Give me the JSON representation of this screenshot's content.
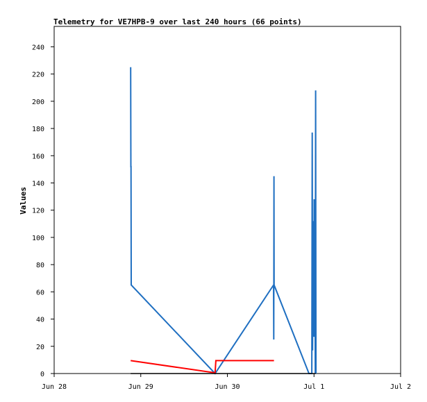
{
  "chart_data": {
    "type": "line",
    "title": "Telemetry for VE7HPB-9 over last 240 hours (66 points)",
    "xlabel": "",
    "ylabel": "Values",
    "x_tick_labels": [
      "Jun 28",
      "Jun 29",
      "Jun 30",
      "Jul 1",
      "Jul 2"
    ],
    "x_ticks": [
      0,
      24,
      48,
      72,
      96
    ],
    "xlim": [
      0,
      96
    ],
    "x_unit_note": "hours after Jun 28 00:00",
    "ylim": [
      0,
      255
    ],
    "y_ticks": [
      0,
      20,
      40,
      60,
      80,
      100,
      120,
      140,
      160,
      180,
      200,
      220,
      240
    ],
    "grid": false,
    "legend": "none",
    "series": [
      {
        "color": "#1f6fc1",
        "points": [
          [
            21.2,
            225
          ],
          [
            21.25,
            152
          ],
          [
            21.3,
            152
          ],
          [
            21.35,
            65
          ],
          [
            44.6,
            0
          ],
          [
            60.8,
            65
          ],
          [
            60.85,
            25
          ],
          [
            60.9,
            145
          ],
          [
            60.95,
            65
          ],
          [
            70.6,
            0
          ],
          [
            71.4,
            0
          ],
          [
            71.5,
            177
          ],
          [
            71.6,
            17
          ],
          [
            71.7,
            82
          ],
          [
            71.8,
            50
          ],
          [
            71.9,
            112
          ],
          [
            72.0,
            27
          ],
          [
            72.05,
            128
          ],
          [
            72.15,
            65
          ],
          [
            72.25,
            98
          ],
          [
            72.35,
            0
          ],
          [
            72.45,
            208
          ],
          [
            72.55,
            0
          ]
        ]
      },
      {
        "color": "#ff0000",
        "points": [
          [
            21.2,
            9.5
          ],
          [
            44.6,
            0.5
          ],
          [
            44.8,
            9.5
          ],
          [
            60.9,
            9.5
          ]
        ]
      },
      {
        "color": "#000000",
        "points": [
          [
            21.2,
            0
          ],
          [
            72.5,
            0
          ]
        ]
      }
    ]
  }
}
